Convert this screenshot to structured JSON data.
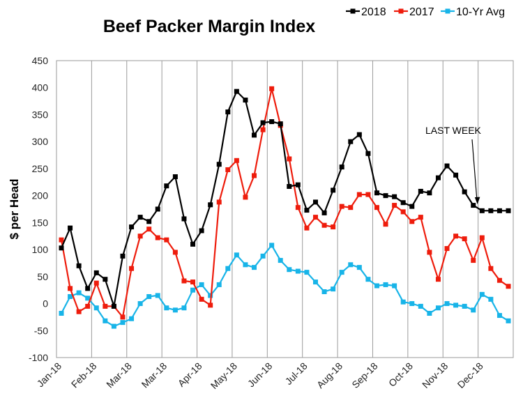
{
  "chart_data": {
    "type": "line",
    "title": "Beef Packer Margin Index",
    "ylabel": "$ per Head",
    "xlabel": "",
    "ylim": [
      -100,
      450
    ],
    "yticks": [
      -100,
      -50,
      0,
      50,
      100,
      150,
      200,
      250,
      300,
      350,
      400,
      450
    ],
    "grid": "vertical",
    "legend_position": "top-right",
    "x_tick_labels": [
      "Jan-18",
      "Feb-18",
      "Mar-18",
      "Mar-18",
      "Apr-18",
      "May-18",
      "Jun-18",
      "Jul-18",
      "Aug-18",
      "Sep-18",
      "Oct-18",
      "Nov-18",
      "Dec-18"
    ],
    "annotation": "LAST WEEK",
    "series": [
      {
        "name": "2018",
        "color": "#000000",
        "marker": "square",
        "values": [
          103,
          140,
          70,
          28,
          57,
          45,
          -5,
          88,
          142,
          160,
          152,
          175,
          218,
          235,
          157,
          110,
          135,
          183,
          258,
          355,
          393,
          377,
          312,
          335,
          337,
          333,
          217,
          220,
          173,
          188,
          168,
          210,
          253,
          300,
          313,
          278,
          205,
          200,
          198,
          187,
          180,
          208,
          205,
          233,
          255,
          238,
          207,
          182,
          172,
          172,
          172,
          172
        ]
      },
      {
        "name": "2017",
        "color": "#ee1c0c",
        "marker": "square",
        "values": [
          118,
          28,
          -15,
          -5,
          38,
          -5,
          -5,
          -25,
          65,
          125,
          138,
          122,
          118,
          95,
          42,
          40,
          8,
          -3,
          188,
          248,
          265,
          197,
          237,
          322,
          398,
          330,
          268,
          178,
          140,
          160,
          145,
          142,
          180,
          178,
          202,
          202,
          178,
          147,
          182,
          170,
          152,
          160,
          95,
          45,
          102,
          125,
          120,
          80,
          122,
          65,
          43,
          32
        ]
      },
      {
        "name": "10-Yr Avg",
        "color": "#18b4e8",
        "marker": "square",
        "values": [
          -18,
          13,
          20,
          10,
          -8,
          -32,
          -42,
          -35,
          -28,
          0,
          13,
          15,
          -8,
          -12,
          -8,
          25,
          35,
          15,
          35,
          65,
          90,
          72,
          67,
          88,
          108,
          80,
          63,
          60,
          58,
          40,
          22,
          27,
          58,
          72,
          67,
          45,
          33,
          35,
          33,
          3,
          0,
          -5,
          -18,
          -8,
          0,
          -3,
          -5,
          -12,
          17,
          8,
          -22,
          -32
        ]
      }
    ]
  }
}
